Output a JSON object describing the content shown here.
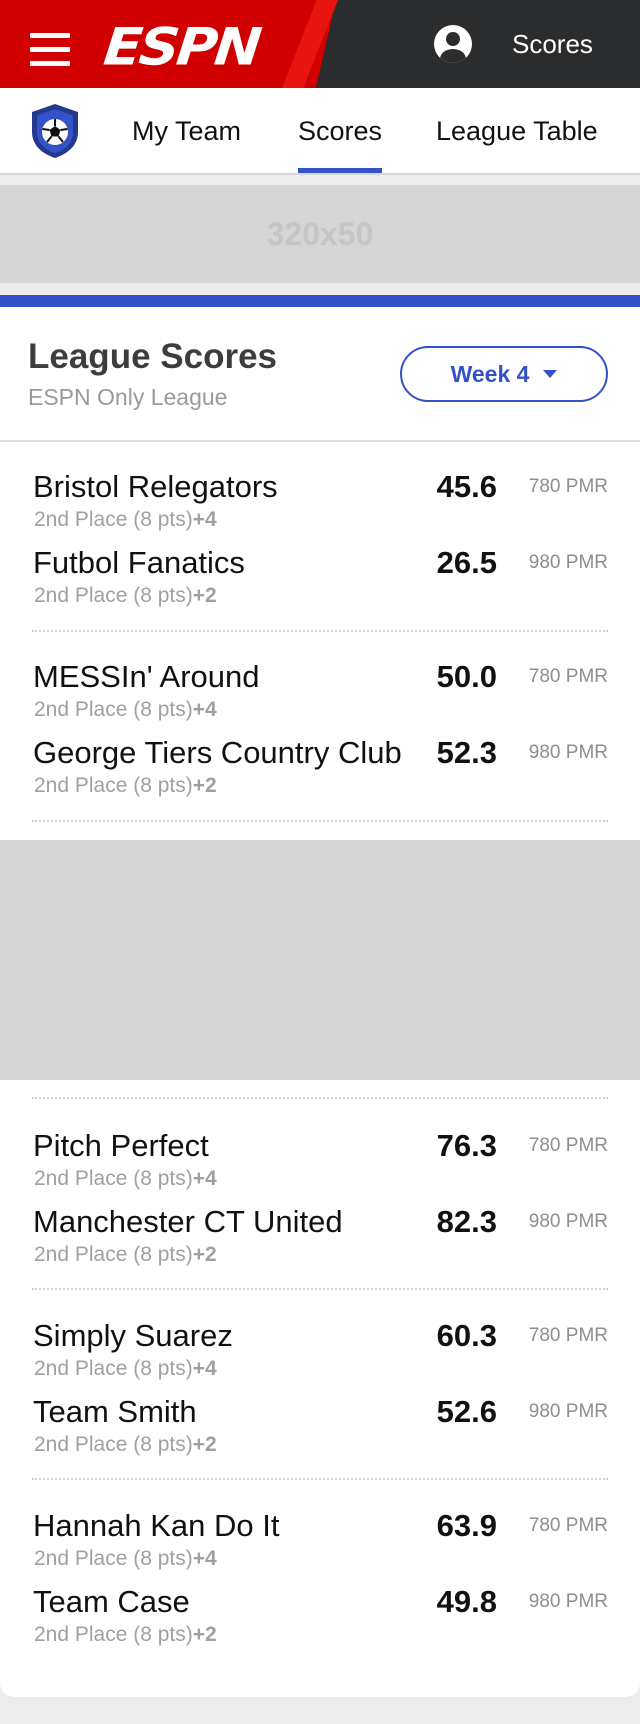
{
  "header": {
    "brand": "ESPN",
    "scores_label": "Scores"
  },
  "nav": {
    "tabs": [
      {
        "label": "My Team"
      },
      {
        "label": "Scores"
      },
      {
        "label": "League Table"
      }
    ],
    "active_tab": "Scores"
  },
  "ads": {
    "top_label": "320x50"
  },
  "league": {
    "title": "League Scores",
    "subtitle": "ESPN Only League",
    "week_label": "Week 4"
  },
  "matchups": [
    [
      {
        "name": "Bristol Relegators",
        "place": "2nd Place (8 pts)",
        "change": "+4",
        "score": "45.6",
        "pmr": "780 PMR"
      },
      {
        "name": "Futbol Fanatics",
        "place": "2nd Place (8 pts)",
        "change": "+2",
        "score": "26.5",
        "pmr": "980 PMR"
      }
    ],
    [
      {
        "name": "MESSIn' Around",
        "place": "2nd Place (8 pts)",
        "change": "+4",
        "score": "50.0",
        "pmr": "780 PMR"
      },
      {
        "name": "George Tiers Country Club",
        "place": "2nd Place (8 pts)",
        "change": "+2",
        "score": "52.3",
        "pmr": "980 PMR"
      }
    ],
    [
      {
        "name": "Pitch Perfect",
        "place": "2nd Place (8 pts)",
        "change": "+4",
        "score": "76.3",
        "pmr": "780 PMR"
      },
      {
        "name": "Manchester CT United",
        "place": "2nd Place (8 pts)",
        "change": "+2",
        "score": "82.3",
        "pmr": "980 PMR"
      }
    ],
    [
      {
        "name": "Simply Suarez",
        "place": "2nd Place (8 pts)",
        "change": "+4",
        "score": "60.3",
        "pmr": "780 PMR"
      },
      {
        "name": "Team Smith",
        "place": "2nd Place (8 pts)",
        "change": "+2",
        "score": "52.6",
        "pmr": "980 PMR"
      }
    ],
    [
      {
        "name": "Hannah Kan Do It",
        "place": "2nd Place (8 pts)",
        "change": "+4",
        "score": "63.9",
        "pmr": "780 PMR"
      },
      {
        "name": "Team Case",
        "place": "2nd Place (8 pts)",
        "change": "+2",
        "score": "49.8",
        "pmr": "980 PMR"
      }
    ]
  ],
  "colors": {
    "espn_red": "#d00000",
    "header_dark": "#2b2c2d",
    "accent_blue": "#3452c8"
  },
  "icons": {
    "menu": "hamburger-menu-icon",
    "user": "user-account-icon",
    "league": "soccer-ball-shield-icon",
    "dropdown": "caret-down-icon"
  }
}
